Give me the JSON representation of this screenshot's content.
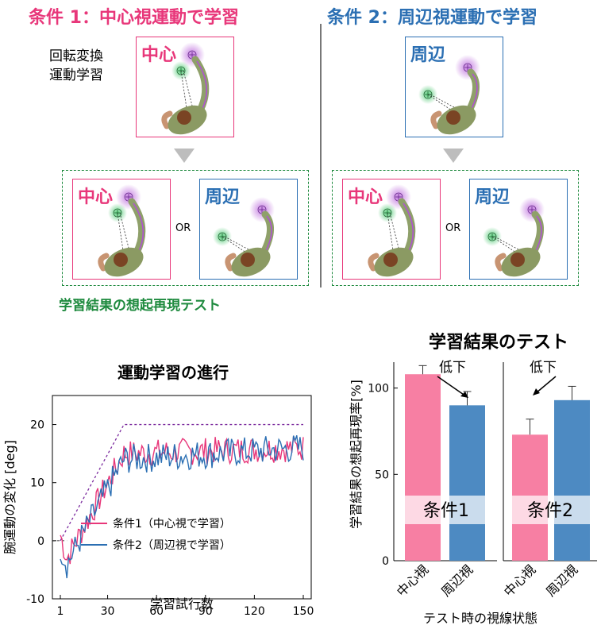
{
  "conditions": {
    "cond1_title": "条件 1：中心視運動で学習",
    "cond2_title": "条件 2：周辺視運動で学習",
    "task_label_line1": "回転変換",
    "task_label_line2": "運動学習",
    "central_label": "中心",
    "peripheral_label": "周辺",
    "or_label": "OR",
    "recall_test_label": "学習結果の想起再現テスト"
  },
  "colors": {
    "pink": "#e8377a",
    "blue": "#2b6fb3",
    "green": "#1e8a3e",
    "bar_pink": "#f77fa3",
    "bar_blue": "#4d8ac2"
  },
  "chart_data": [
    {
      "type": "line",
      "title": "運動学習の進行",
      "xlabel": "学習試行数",
      "ylabel": "腕運動の変化 [deg]",
      "xlim": [
        1,
        150
      ],
      "ylim": [
        -10,
        25
      ],
      "xticks": [
        "1",
        "30",
        "60",
        "90",
        "120",
        "150"
      ],
      "xtick_values": [
        1,
        30,
        60,
        90,
        120,
        150
      ],
      "yticks": [
        "-10",
        "0",
        "10",
        "20"
      ],
      "ytick_values": [
        -10,
        0,
        10,
        20
      ],
      "ideal": {
        "x": [
          1,
          40,
          150
        ],
        "y": [
          0,
          20,
          20
        ]
      },
      "series": [
        {
          "name": "条件1（中心視で学習）",
          "color": "#e8377a",
          "trend_x": [
            1,
            5,
            40,
            150
          ],
          "trend_y": [
            1,
            -3,
            15,
            16
          ],
          "noise": 2.4
        },
        {
          "name": "条件2（周辺視で学習）",
          "color": "#2b6fb3",
          "trend_x": [
            1,
            5,
            40,
            150
          ],
          "trend_y": [
            -1,
            -4,
            14,
            16
          ],
          "noise": 2.6
        }
      ]
    },
    {
      "type": "bar",
      "title": "学習結果のテスト",
      "xlabel": "テスト時の視線状態",
      "ylabel": "学習結果の想起再現率[%]",
      "ylim": [
        0,
        115
      ],
      "yticks": [
        "0",
        "50",
        "100"
      ],
      "ytick_values": [
        0,
        50,
        100
      ],
      "groups": [
        {
          "name": "条件1",
          "arrow_label": "低下",
          "categories": [
            "中心視",
            "周辺視"
          ],
          "values": [
            108,
            90
          ],
          "errors": [
            5,
            8
          ]
        },
        {
          "name": "条件2",
          "arrow_label": "低下",
          "categories": [
            "中心視",
            "周辺視"
          ],
          "values": [
            73,
            93
          ],
          "errors": [
            9,
            8
          ]
        }
      ]
    }
  ]
}
